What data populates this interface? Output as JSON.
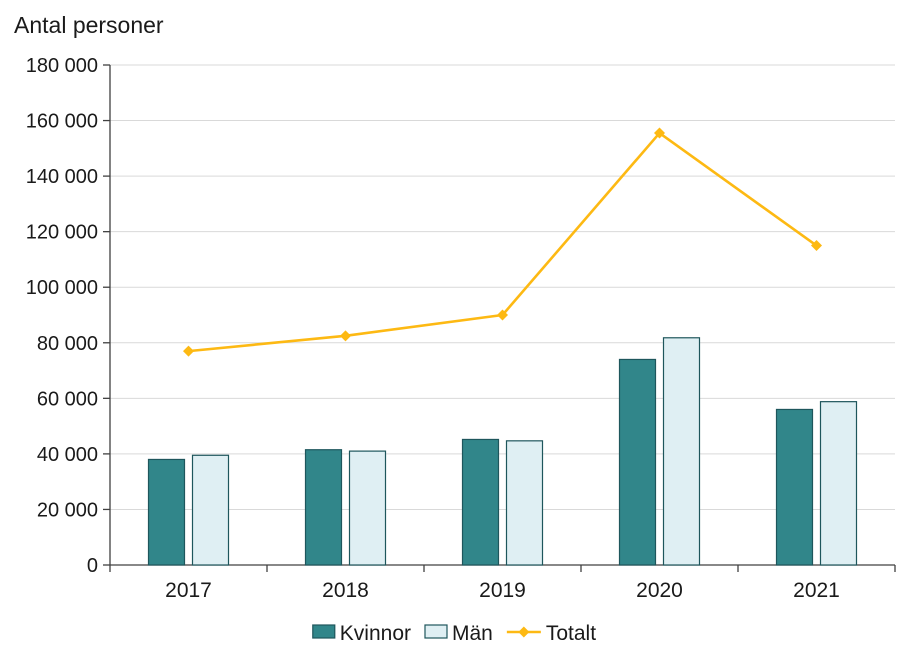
{
  "page": {
    "title": "Antal personer"
  },
  "chart_data": {
    "type": "bar",
    "subtype": "grouped-bars-with-line",
    "title": "Antal personer",
    "xlabel": "",
    "ylabel": "Antal personer",
    "categories": [
      "2017",
      "2018",
      "2019",
      "2020",
      "2021"
    ],
    "series": [
      {
        "name": "Kvinnor",
        "type": "bar",
        "values": [
          38000,
          41500,
          45200,
          74000,
          56000
        ],
        "fill": "#31868a",
        "stroke": "#1e565c"
      },
      {
        "name": "Män",
        "type": "bar",
        "values": [
          39500,
          41000,
          44700,
          81800,
          58800
        ],
        "fill": "#dfeff3",
        "stroke": "#1e565c"
      },
      {
        "name": "Totalt",
        "type": "line",
        "values": [
          77000,
          82500,
          90000,
          155500,
          115000
        ],
        "color": "#fdb913",
        "marker": "diamond"
      }
    ],
    "ylim": [
      0,
      180000
    ],
    "ytick_step": 20000,
    "ytick_labels": [
      "0",
      "20 000",
      "40 000",
      "60 000",
      "80 000",
      "100 000",
      "120 000",
      "140 000",
      "160 000",
      "180 000"
    ],
    "grid": true,
    "gridline_color": "#d9d9d9",
    "axis_color": "#404040",
    "legend_position": "bottom"
  }
}
